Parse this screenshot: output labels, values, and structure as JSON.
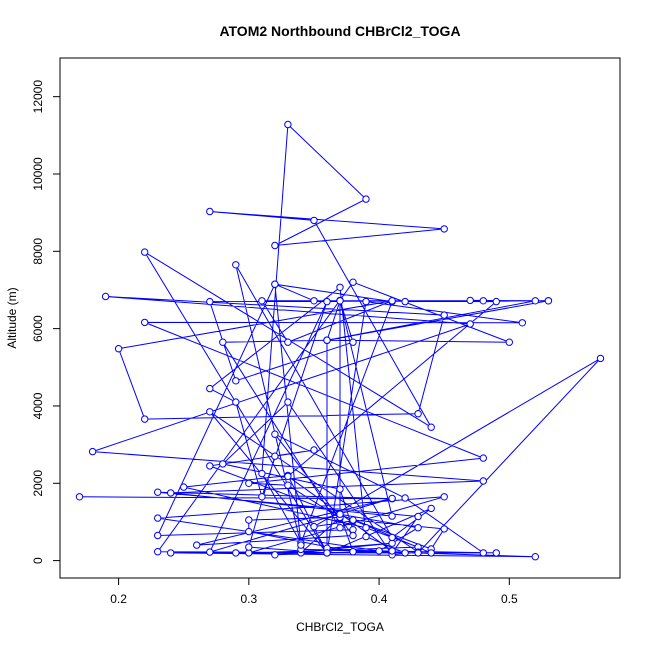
{
  "chart_data": {
    "type": "line",
    "title": "ATOM2 Northbound CHBrCl2_TOGA",
    "xlabel": "CHBrCl2_TOGA",
    "ylabel": "Altitude (m)",
    "xlim": [
      0.155,
      0.585
    ],
    "ylim": [
      -450,
      13000
    ],
    "x_ticks": [
      0.2,
      0.3,
      0.4,
      0.5
    ],
    "x_tick_labels": [
      "0.2",
      "0.3",
      "0.4",
      "0.5"
    ],
    "y_ticks": [
      0,
      2000,
      4000,
      6000,
      8000,
      10000,
      12000
    ],
    "y_tick_labels": [
      "0",
      "2000",
      "4000",
      "6000",
      "8000",
      "10000",
      "12000"
    ],
    "color": "#0000ff",
    "grid": false,
    "series": [
      {
        "points": [
          [
            0.17,
            1650
          ],
          [
            0.41,
            1600
          ],
          [
            0.23,
            1770
          ],
          [
            0.43,
            1140
          ],
          [
            0.41,
            200
          ],
          [
            0.23,
            1100
          ],
          [
            0.45,
            1650
          ],
          [
            0.3,
            200
          ],
          [
            0.43,
            350
          ],
          [
            0.39,
            850
          ],
          [
            0.25,
            1900
          ],
          [
            0.33,
            2200
          ],
          [
            0.36,
            200
          ],
          [
            0.27,
            3850
          ],
          [
            0.43,
            220
          ],
          [
            0.41,
            150
          ],
          [
            0.33,
            4100
          ],
          [
            0.28,
            2500
          ],
          [
            0.37,
            1850
          ],
          [
            0.38,
            800
          ],
          [
            0.23,
            650
          ],
          [
            0.32,
            7150
          ],
          [
            0.41,
            6700
          ],
          [
            0.34,
            450
          ],
          [
            0.31,
            2250
          ],
          [
            0.33,
            11280
          ],
          [
            0.39,
            9350
          ],
          [
            0.32,
            8150
          ],
          [
            0.45,
            8580
          ],
          [
            0.27,
            9030
          ],
          [
            0.35,
            8800
          ],
          [
            0.44,
            3450
          ],
          [
            0.22,
            7980
          ],
          [
            0.36,
            200
          ],
          [
            0.39,
            6700
          ],
          [
            0.51,
            6150
          ],
          [
            0.22,
            6160
          ],
          [
            0.48,
            2650
          ],
          [
            0.3,
            2000
          ],
          [
            0.33,
            1950
          ],
          [
            0.37,
            1100
          ],
          [
            0.37,
            6730
          ],
          [
            0.38,
            5650
          ],
          [
            0.29,
            4650
          ],
          [
            0.27,
            6700
          ],
          [
            0.48,
            6720
          ],
          [
            0.47,
            6730
          ],
          [
            0.53,
            6720
          ],
          [
            0.36,
            5700
          ],
          [
            0.52,
            6720
          ],
          [
            0.42,
            6700
          ],
          [
            0.53,
            6720
          ],
          [
            0.31,
            6720
          ],
          [
            0.33,
            5650
          ],
          [
            0.41,
            6720
          ],
          [
            0.2,
            5480
          ],
          [
            0.22,
            3660
          ],
          [
            0.43,
            3800
          ],
          [
            0.45,
            6350
          ],
          [
            0.19,
            6830
          ],
          [
            0.47,
            6120
          ],
          [
            0.18,
            2820
          ],
          [
            0.48,
            2060
          ],
          [
            0.24,
            1750
          ],
          [
            0.41,
            1150
          ],
          [
            0.37,
            6720
          ],
          [
            0.36,
            5700
          ],
          [
            0.5,
            5650
          ],
          [
            0.38,
            7200
          ],
          [
            0.23,
            230
          ],
          [
            0.42,
            200
          ],
          [
            0.39,
            620
          ],
          [
            0.37,
            7070
          ],
          [
            0.27,
            4450
          ],
          [
            0.29,
            4100
          ],
          [
            0.31,
            1650
          ],
          [
            0.36,
            6700
          ],
          [
            0.27,
            220
          ],
          [
            0.41,
            1610
          ],
          [
            0.26,
            400
          ],
          [
            0.38,
            650
          ],
          [
            0.32,
            3270
          ],
          [
            0.42,
            1620
          ],
          [
            0.48,
            200
          ],
          [
            0.34,
            200
          ],
          [
            0.37,
            1120
          ],
          [
            0.3,
            1050
          ],
          [
            0.3,
            750
          ],
          [
            0.38,
            230
          ],
          [
            0.37,
            1200
          ],
          [
            0.43,
            850
          ],
          [
            0.4,
            250
          ],
          [
            0.49,
            200
          ],
          [
            0.34,
            290
          ],
          [
            0.52,
            100
          ],
          [
            0.24,
            200
          ],
          [
            0.43,
            200
          ],
          [
            0.57,
            5230
          ],
          [
            0.35,
            880
          ],
          [
            0.38,
            1030
          ],
          [
            0.37,
            850
          ],
          [
            0.28,
            5650
          ],
          [
            0.36,
            5700
          ],
          [
            0.36,
            320
          ],
          [
            0.41,
            450
          ],
          [
            0.32,
            150
          ],
          [
            0.41,
            250
          ],
          [
            0.33,
            2180
          ],
          [
            0.49,
            6700
          ],
          [
            0.35,
            6720
          ],
          [
            0.32,
            7150
          ],
          [
            0.34,
            400
          ],
          [
            0.29,
            7650
          ],
          [
            0.41,
            600
          ],
          [
            0.44,
            1350
          ],
          [
            0.36,
            200
          ],
          [
            0.3,
            350
          ],
          [
            0.32,
            2700
          ],
          [
            0.35,
            2860
          ],
          [
            0.27,
            2450
          ],
          [
            0.44,
            300
          ],
          [
            0.45,
            820
          ],
          [
            0.38,
            1050
          ],
          [
            0.44,
            200
          ],
          [
            0.29,
            200
          ]
        ]
      }
    ]
  }
}
